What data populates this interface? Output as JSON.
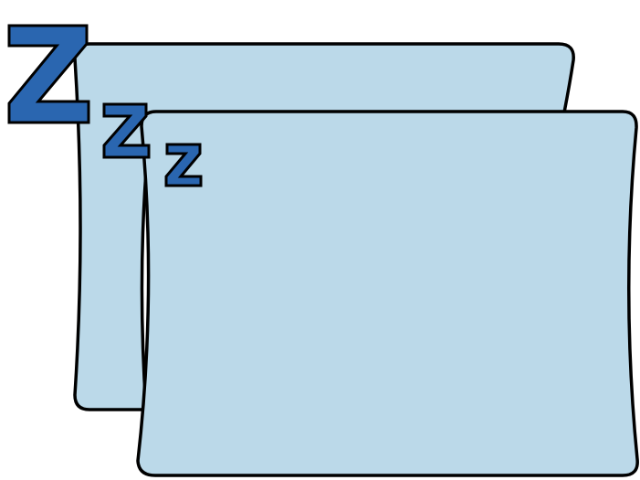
{
  "illustration": {
    "subject": "sleeping-windows",
    "letters": [
      "Z",
      "Z",
      "Z"
    ],
    "colors": {
      "panel_fill": "#bbd9e9",
      "outline": "#000000",
      "letter_fill": "#2a66b0",
      "background": "#ffffff"
    }
  }
}
